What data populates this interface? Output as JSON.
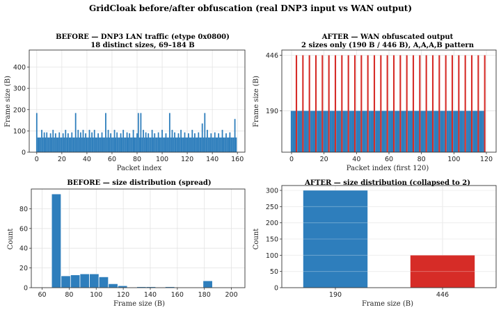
{
  "figure": {
    "title": "GridCloak before/after obfuscation (real DNP3 input vs WAN output)"
  },
  "colors": {
    "blue": "#2e7ebc",
    "red": "#d62c27"
  },
  "chart_data": [
    {
      "id": "before_traffic",
      "type": "bar",
      "title_line1": "BEFORE — DNP3 LAN traffic (etype 0x0800)",
      "title_line2": "18 distinct sizes, 69–184 B",
      "xlabel": "Packet index",
      "ylabel": "Frame size (B)",
      "xlim": [
        -6,
        166
      ],
      "ylim": [
        0,
        480
      ],
      "xticks": [
        "0",
        "20",
        "40",
        "60",
        "80",
        "100",
        "120",
        "140",
        "160"
      ],
      "yticks": [
        "0",
        "100",
        "200",
        "300",
        "400"
      ],
      "grid": true,
      "x_start": 0,
      "values": [
        184,
        69,
        69,
        69,
        105,
        69,
        93,
        69,
        93,
        69,
        69,
        89,
        69,
        105,
        69,
        89,
        69,
        69,
        93,
        69,
        69,
        89,
        69,
        105,
        69,
        89,
        69,
        69,
        93,
        69,
        69,
        184,
        69,
        105,
        69,
        93,
        69,
        105,
        69,
        89,
        69,
        69,
        105,
        69,
        93,
        69,
        105,
        69,
        69,
        89,
        69,
        69,
        93,
        69,
        69,
        184,
        69,
        105,
        69,
        89,
        69,
        69,
        105,
        69,
        93,
        69,
        69,
        89,
        69,
        105,
        69,
        69,
        93,
        69,
        89,
        69,
        69,
        105,
        69,
        69,
        89,
        184,
        69,
        184,
        69,
        105,
        69,
        93,
        69,
        89,
        69,
        69,
        105,
        69,
        89,
        69,
        69,
        93,
        69,
        69,
        105,
        69,
        69,
        89,
        69,
        69,
        184,
        69,
        105,
        69,
        93,
        69,
        69,
        89,
        69,
        105,
        69,
        69,
        93,
        69,
        69,
        89,
        69,
        69,
        105,
        69,
        89,
        69,
        69,
        93,
        69,
        69,
        135,
        69,
        184,
        69,
        105,
        69,
        69,
        89,
        69,
        69,
        93,
        69,
        69,
        89,
        69,
        69,
        105,
        69,
        69,
        89,
        69,
        69,
        93,
        69,
        69,
        69,
        156,
        69
      ]
    },
    {
      "id": "after_traffic",
      "type": "bar",
      "title_line1": "AFTER — WAN obfuscated output",
      "title_line2": "2 sizes only (190 B / 446 B), A,A,A,B pattern",
      "xlabel": "Packet index (first 120)",
      "ylabel": "Frame size (B)",
      "xlim": [
        -6,
        126
      ],
      "ylim": [
        0,
        470
      ],
      "xticks": [
        "0",
        "20",
        "40",
        "60",
        "80",
        "100",
        "120"
      ],
      "yticks": [
        "190",
        "446"
      ],
      "grid": true,
      "pattern": [
        "A",
        "A",
        "A",
        "B"
      ],
      "sizes": {
        "A": 190,
        "B": 446
      },
      "count": 120
    },
    {
      "id": "before_hist",
      "type": "bar",
      "title": "BEFORE — size distribution (spread)",
      "xlabel": "Frame size (B)",
      "ylabel": "Count",
      "xlim": [
        52,
        210
      ],
      "ylim": [
        0,
        100
      ],
      "xticks": [
        "60",
        "80",
        "100",
        "120",
        "140",
        "160",
        "180",
        "200"
      ],
      "yticks": [
        "0",
        "20",
        "40",
        "60",
        "80"
      ],
      "grid": true,
      "bins": [
        {
          "lo": 67,
          "hi": 74,
          "count": 95
        },
        {
          "lo": 74,
          "hi": 81,
          "count": 12
        },
        {
          "lo": 81,
          "hi": 88,
          "count": 13
        },
        {
          "lo": 88,
          "hi": 95,
          "count": 14
        },
        {
          "lo": 95,
          "hi": 102,
          "count": 14
        },
        {
          "lo": 102,
          "hi": 109,
          "count": 11
        },
        {
          "lo": 109,
          "hi": 116,
          "count": 4
        },
        {
          "lo": 116,
          "hi": 123,
          "count": 2
        },
        {
          "lo": 130,
          "hi": 137,
          "count": 1
        },
        {
          "lo": 137,
          "hi": 144,
          "count": 1
        },
        {
          "lo": 151,
          "hi": 158,
          "count": 1
        },
        {
          "lo": 179,
          "hi": 186,
          "count": 7
        }
      ]
    },
    {
      "id": "after_hist",
      "type": "bar",
      "title": "AFTER — size distribution (collapsed to 2)",
      "xlabel": "Frame size (B)",
      "ylabel": "Count",
      "ylim": [
        0,
        315
      ],
      "categories": [
        "190",
        "446"
      ],
      "values": [
        300,
        100
      ],
      "yticks": [
        "0",
        "50",
        "100",
        "150",
        "200",
        "250",
        "300"
      ],
      "grid": true
    }
  ]
}
